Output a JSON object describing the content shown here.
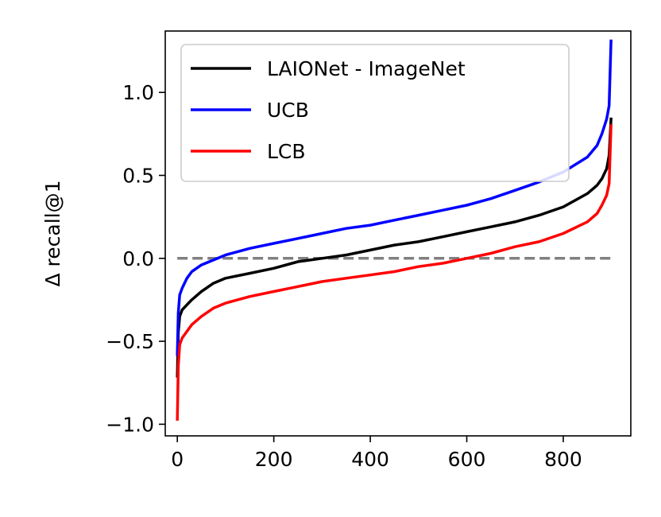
{
  "chart_data": {
    "type": "line",
    "title": "",
    "xlabel": "",
    "ylabel": "Δ recall@1",
    "xlim": [
      -25,
      940
    ],
    "ylim": [
      -1.07,
      1.37
    ],
    "xticks": [
      0,
      200,
      400,
      600,
      800
    ],
    "xtick_labels": [
      "0",
      "200",
      "400",
      "600",
      "800"
    ],
    "yticks": [
      -1.0,
      -0.5,
      0.0,
      0.5,
      1.0
    ],
    "ytick_labels": [
      "−1.0",
      "−0.5",
      "0.0",
      "0.5",
      "1.0"
    ],
    "grid": false,
    "legend_position": "top-left",
    "reference_line": {
      "y": 0.0,
      "style": "dashed",
      "color": "#808080"
    },
    "series": [
      {
        "name": "LAIONet - ImageNet",
        "color": "#000000",
        "x": [
          0,
          2,
          5,
          10,
          20,
          30,
          50,
          75,
          100,
          150,
          200,
          250,
          300,
          350,
          400,
          450,
          500,
          550,
          600,
          650,
          700,
          750,
          800,
          850,
          870,
          880,
          890,
          895,
          899
        ],
        "y": [
          -0.71,
          -0.45,
          -0.35,
          -0.31,
          -0.28,
          -0.25,
          -0.2,
          -0.15,
          -0.12,
          -0.09,
          -0.06,
          -0.02,
          0.0,
          0.02,
          0.05,
          0.08,
          0.1,
          0.13,
          0.16,
          0.19,
          0.22,
          0.26,
          0.31,
          0.39,
          0.44,
          0.48,
          0.54,
          0.62,
          0.84
        ]
      },
      {
        "name": "UCB",
        "color": "#0000ff",
        "x": [
          0,
          2,
          5,
          10,
          20,
          30,
          50,
          75,
          100,
          150,
          200,
          250,
          300,
          350,
          400,
          450,
          500,
          550,
          600,
          650,
          700,
          750,
          800,
          850,
          870,
          880,
          890,
          895,
          899
        ],
        "y": [
          -0.58,
          -0.33,
          -0.22,
          -0.18,
          -0.12,
          -0.08,
          -0.04,
          -0.01,
          0.02,
          0.06,
          0.09,
          0.12,
          0.15,
          0.18,
          0.2,
          0.23,
          0.26,
          0.29,
          0.32,
          0.36,
          0.41,
          0.46,
          0.52,
          0.61,
          0.68,
          0.75,
          0.84,
          0.92,
          1.31
        ]
      },
      {
        "name": "LCB",
        "color": "#ff0000",
        "x": [
          0,
          2,
          5,
          10,
          20,
          30,
          50,
          75,
          100,
          150,
          200,
          250,
          300,
          350,
          400,
          450,
          500,
          550,
          600,
          650,
          700,
          750,
          800,
          850,
          870,
          880,
          890,
          895,
          899
        ],
        "y": [
          -0.97,
          -0.65,
          -0.52,
          -0.48,
          -0.44,
          -0.4,
          -0.35,
          -0.3,
          -0.27,
          -0.23,
          -0.2,
          -0.17,
          -0.14,
          -0.12,
          -0.1,
          -0.08,
          -0.05,
          -0.03,
          0.0,
          0.03,
          0.07,
          0.1,
          0.15,
          0.22,
          0.27,
          0.32,
          0.38,
          0.45,
          0.8
        ]
      }
    ]
  }
}
